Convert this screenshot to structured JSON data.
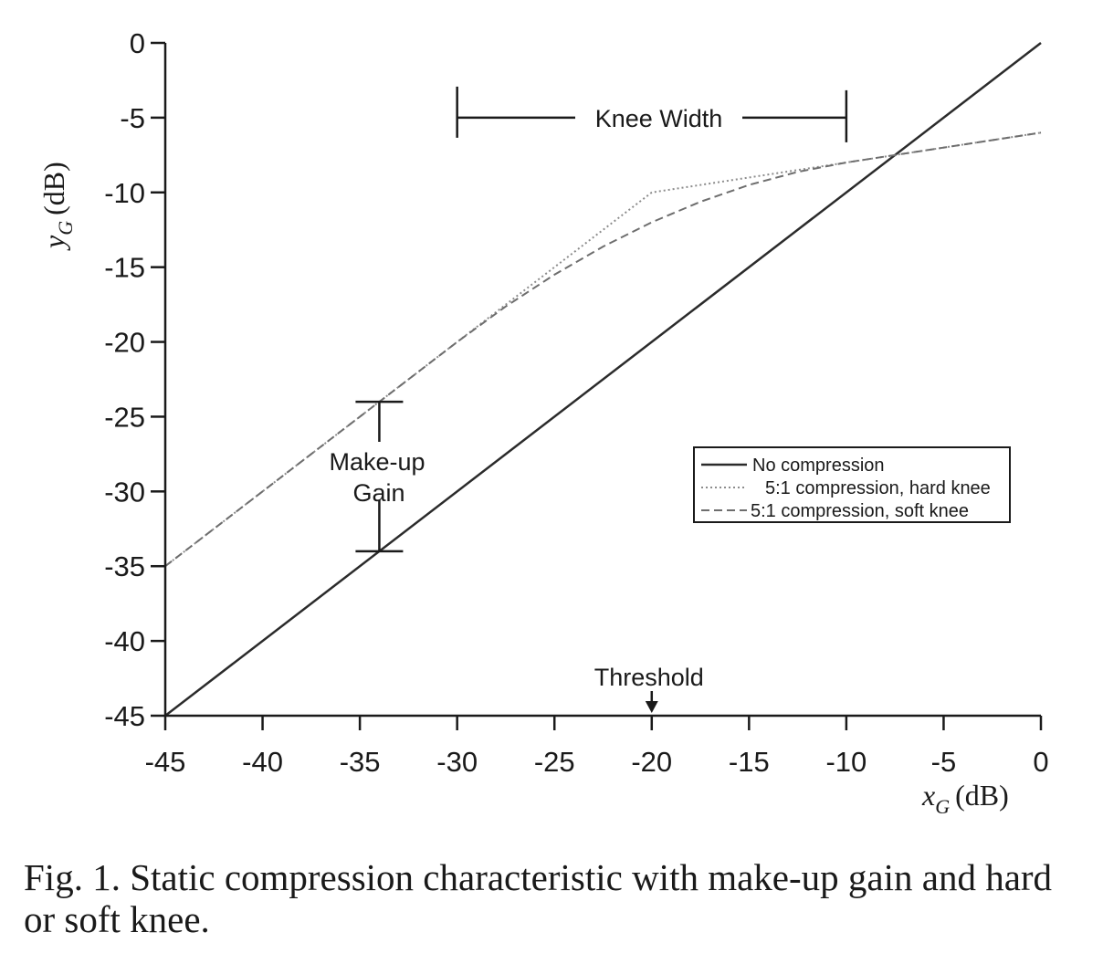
{
  "chart_data": {
    "type": "line",
    "xlabel": {
      "var": "x",
      "sub": "G",
      "unit": "(dB)"
    },
    "ylabel": {
      "var": "y",
      "sub": "G",
      "unit": "(dB)"
    },
    "xlim": [
      -45,
      0
    ],
    "ylim": [
      -45,
      0
    ],
    "x_ticks": [
      -45,
      -40,
      -35,
      -30,
      -25,
      -20,
      -15,
      -10,
      -5,
      0
    ],
    "y_ticks": [
      0,
      -5,
      -10,
      -15,
      -20,
      -25,
      -30,
      -35,
      -40,
      -45
    ],
    "legend_position": "right-middle",
    "series": [
      {
        "name": "No compression",
        "style": "solid",
        "color": "#2b2b2b",
        "x": [
          -45,
          0
        ],
        "y": [
          -45,
          0
        ]
      },
      {
        "name": "5:1 compression, hard knee",
        "style": "dotted",
        "color": "#8c8c8c",
        "x": [
          -45,
          -20,
          0
        ],
        "y": [
          -35,
          -10,
          -6
        ]
      },
      {
        "name": "5:1 compression, soft knee",
        "style": "dashed",
        "color": "#6e6e6e",
        "x": [
          -45,
          -30,
          -27.5,
          -25,
          -22.5,
          -20,
          -17.5,
          -15,
          -12.5,
          -10,
          0
        ],
        "y": [
          -35,
          -20,
          -17.625,
          -15.5,
          -13.625,
          -12,
          -10.625,
          -9.5,
          -8.625,
          -8,
          -6
        ]
      }
    ],
    "annotations": {
      "knee_width": {
        "label": "Knee Width",
        "x_from": -30,
        "x_to": -10,
        "y": -5
      },
      "makeup_gain": {
        "label_line1": "Make-up",
        "label_line2": "Gain",
        "x": -34,
        "y_top": -24,
        "y_bottom": -34
      },
      "threshold": {
        "label": "Threshold",
        "x": -20
      }
    }
  },
  "caption": "Fig. 1.  Static compression characteristic with make-up gain and hard or soft knee."
}
